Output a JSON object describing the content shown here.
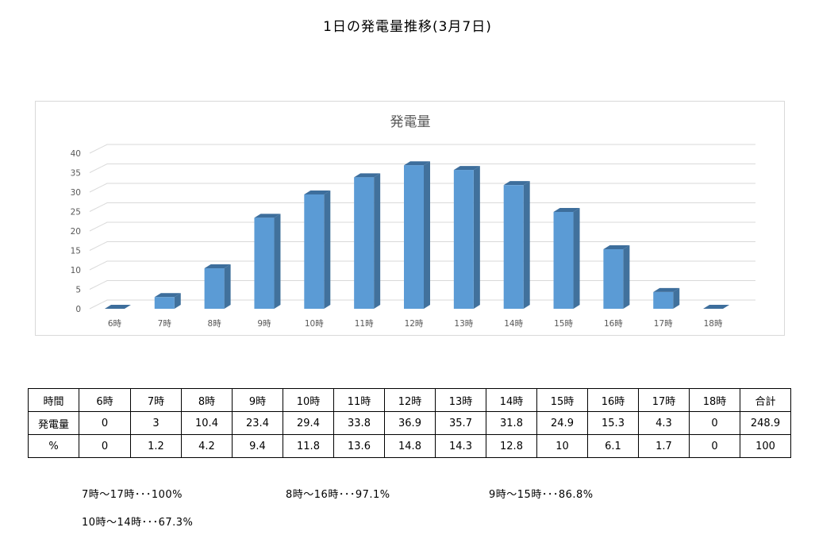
{
  "page_title": "1日の発電量推移(3月7日)",
  "chart_data": {
    "type": "bar",
    "title": "発電量",
    "categories": [
      "6時",
      "7時",
      "8時",
      "9時",
      "10時",
      "11時",
      "12時",
      "13時",
      "14時",
      "15時",
      "16時",
      "17時",
      "18時"
    ],
    "values": [
      0,
      3,
      10.4,
      23.4,
      29.4,
      33.8,
      36.9,
      35.7,
      31.8,
      24.9,
      15.3,
      4.3,
      0
    ],
    "yticks": [
      0,
      5,
      10,
      15,
      20,
      25,
      30,
      35,
      40
    ],
    "ylim": [
      0,
      40
    ],
    "grid": true,
    "legend": false,
    "bar_color": "#5b9bd5",
    "bar_side_color": "#41719c",
    "bar_top_color": "#3d6e9c"
  },
  "table": {
    "header": [
      "時間",
      "6時",
      "7時",
      "8時",
      "9時",
      "10時",
      "11時",
      "12時",
      "13時",
      "14時",
      "15時",
      "16時",
      "17時",
      "18時",
      "合計"
    ],
    "rows": [
      [
        "発電量",
        "0",
        "3",
        "10.4",
        "23.4",
        "29.4",
        "33.8",
        "36.9",
        "35.7",
        "31.8",
        "24.9",
        "15.3",
        "4.3",
        "0",
        "248.9"
      ],
      [
        "%",
        "0",
        "1.2",
        "4.2",
        "9.4",
        "11.8",
        "13.6",
        "14.8",
        "14.3",
        "12.8",
        "10",
        "6.1",
        "1.7",
        "0",
        "100"
      ]
    ]
  },
  "notes": [
    "7時～17時･･･100%",
    "8時～16時･･･97.1%",
    "9時～15時･･･86.8%",
    "10時～14時･･･67.3%"
  ]
}
